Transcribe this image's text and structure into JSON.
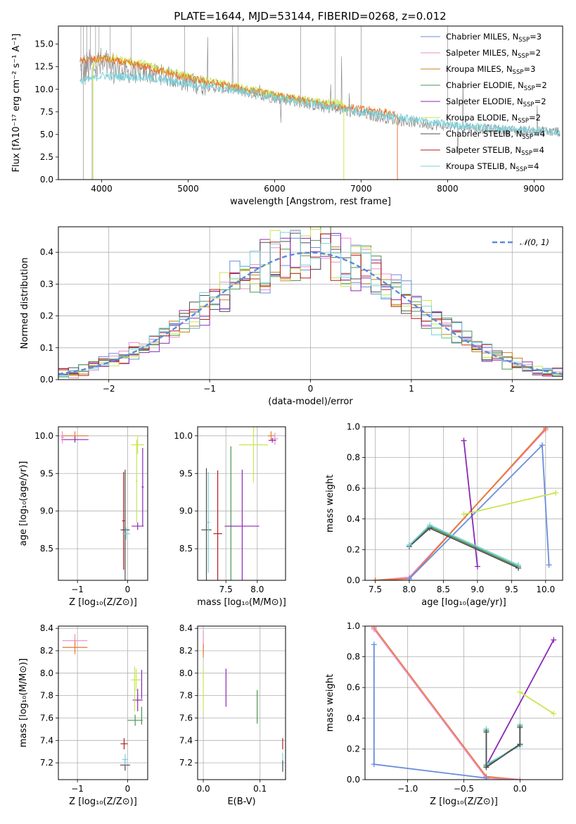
{
  "colors": {
    "Chabrier MILES": "#6a8cdc",
    "Salpeter MILES": "#ec8cc8",
    "Kroupa MILES": "#c8821e",
    "Chabrier ELODIE": "#4c9650",
    "Salpeter ELODIE": "#8c28b4",
    "Kroupa ELODIE": "#c8e650",
    "Chabrier STELIB": "#505050",
    "Salpeter STELIB": "#b41e1e",
    "Kroupa STELIB": "#78d2dc",
    "data": "#808080",
    "gauss": "#5a8cdc",
    "orange": "#e87830"
  },
  "chart_data": [
    {
      "id": "spectrum",
      "type": "line",
      "title": "PLATE=1644, MJD=53144, FIBERID=0268, z=0.012",
      "xlabel": "wavelength [Angstrom, rest frame]",
      "ylabel": "Flux [fλ10⁻¹⁷ erg cm⁻² s⁻¹ A⁻¹]",
      "xlim": [
        3500,
        9330
      ],
      "ylim": [
        0,
        17
      ],
      "xticks": [
        4000,
        5000,
        6000,
        7000,
        8000,
        9000
      ],
      "yticks": [
        0.0,
        2.5,
        5.0,
        7.5,
        10.0,
        12.5,
        15.0
      ],
      "grid": false,
      "legend_position": "top-right",
      "legend": [
        {
          "main": "Chabrier MILES, N",
          "sub": "SSP",
          "end": "=3",
          "color": "Chabrier MILES"
        },
        {
          "main": "Salpeter MILES, N",
          "sub": "SSP",
          "end": "=2",
          "color": "Salpeter MILES"
        },
        {
          "main": "Kroupa MILES, N",
          "sub": "SSP",
          "end": "=3",
          "color": "Kroupa MILES"
        },
        {
          "main": "Chabrier ELODIE, N",
          "sub": "SSP",
          "end": "=2",
          "color": "Chabrier ELODIE"
        },
        {
          "main": "Salpeter ELODIE, N",
          "sub": "SSP",
          "end": "=2",
          "color": "Salpeter ELODIE"
        },
        {
          "main": "Kroupa ELODIE, N",
          "sub": "SSP",
          "end": "=2",
          "color": "Kroupa ELODIE"
        },
        {
          "main": "Chabrier STELIB, N",
          "sub": "SSP",
          "end": "=4",
          "color": "Chabrier STELIB"
        },
        {
          "main": "Salpeter STELIB, N",
          "sub": "SSP",
          "end": "=4",
          "color": "Salpeter STELIB"
        },
        {
          "main": "Kroupa STELIB, N",
          "sub": "SSP",
          "end": "=4",
          "color": "Kroupa STELIB"
        }
      ],
      "continuum": {
        "x": [
          3750,
          3900,
          4000,
          4100,
          4300,
          4500,
          4700,
          5000,
          5300,
          5600,
          5900,
          6200,
          6500,
          6800,
          7100,
          7400,
          7700,
          8000,
          8300,
          8600,
          8900,
          9200
        ],
        "y": [
          12.0,
          12.5,
          12.6,
          12.3,
          11.8,
          11.8,
          11.6,
          10.8,
          10.2,
          9.8,
          9.2,
          8.7,
          8.1,
          7.6,
          7.1,
          6.6,
          6.2,
          5.9,
          5.7,
          5.5,
          5.4,
          5.3
        ]
      },
      "models": [
        {
          "name": "Kroupa ELODIE",
          "x": [
            3900,
            4000,
            4500,
            5000,
            5500,
            6000,
            6500,
            6800
          ],
          "y": [
            12.8,
            13.6,
            12.8,
            11.4,
            10.4,
            9.4,
            8.6,
            8.4
          ]
        },
        {
          "name": "Kroupa MILES",
          "x": [
            3750,
            4000,
            4500,
            5000,
            5500,
            6000,
            6500,
            7000,
            7400
          ],
          "y": [
            13.1,
            13.4,
            12.5,
            11.2,
            10.3,
            9.3,
            8.5,
            7.8,
            7.3
          ]
        },
        {
          "name": "Kroupa STELIB",
          "x": [
            3750,
            4000,
            4500,
            5000,
            5500,
            6000,
            6500,
            7000,
            7500,
            8000,
            8500,
            9000,
            9300
          ],
          "y": [
            10.8,
            11.5,
            11.3,
            10.6,
            10.0,
            9.1,
            8.3,
            7.5,
            6.8,
            6.1,
            5.7,
            5.5,
            5.3
          ]
        }
      ]
    },
    {
      "id": "residuals",
      "type": "line",
      "xlabel": "(data-model)/error",
      "ylabel": "Normed distribution",
      "xlim": [
        -2.5,
        2.5
      ],
      "ylim": [
        0,
        0.48
      ],
      "xticks": [
        -2,
        -1,
        0,
        1,
        2
      ],
      "yticks": [
        0.0,
        0.1,
        0.2,
        0.3,
        0.4
      ],
      "grid": true,
      "legend_position": "top-right",
      "gauss_label": "𝒩(0, 1)",
      "hist_bins": 50,
      "series_order": [
        "Chabrier MILES",
        "Salpeter MILES",
        "Kroupa MILES",
        "Chabrier ELODIE",
        "Salpeter ELODIE",
        "Kroupa ELODIE",
        "Chabrier STELIB",
        "Salpeter STELIB",
        "Kroupa STELIB"
      ]
    },
    {
      "id": "age-Z",
      "type": "scatter",
      "xlabel": "Z [log₁₀(Z/Z⊙)]",
      "ylabel": "age  [log₁₀(age/yr)]",
      "xlim": [
        -1.38,
        0.4
      ],
      "ylim": [
        8.08,
        10.12
      ],
      "xticks": [
        -1,
        0
      ],
      "yticks": [
        8.5,
        9.0,
        9.5,
        10.0
      ],
      "grid": true,
      "points": [
        {
          "name": "Kroupa MILES",
          "x": -1.05,
          "xerr": 0.27,
          "y": 10.0,
          "yerr": 0.06
        },
        {
          "name": "Salpeter ELODIE",
          "x": -1.05,
          "xerr": 0.27,
          "y": 9.95,
          "yerr": 0.04
        },
        {
          "name": "Salpeter MILES",
          "x": -1.3,
          "xerr": 0.03,
          "y": 9.98,
          "yerr": 0.08
        },
        {
          "name": "Chabrier STELIB",
          "x": -0.05,
          "xerr": 0.09,
          "y": 8.75,
          "yerr": 0.8
        },
        {
          "name": "Salpeter STELIB",
          "x": -0.08,
          "xerr": 0.03,
          "y": 8.87,
          "yerr": 0.65
        },
        {
          "name": "Kroupa STELIB",
          "x": -0.03,
          "xerr": 0.08,
          "y": 8.7,
          "yerr": 0.08
        },
        {
          "name": "Kroupa ELODIE",
          "x": 0.2,
          "xerr": 0.13,
          "y": 9.88,
          "yerr": 0.12
        },
        {
          "name": "Salpeter ELODIE",
          "x": 0.2,
          "xerr": 0.12,
          "y": 8.8,
          "yerr": 0.05
        },
        {
          "name": "Salpeter ELODIE",
          "x": 0.3,
          "xerr": 0.02,
          "y": 9.32,
          "yerr": 0.52
        },
        {
          "name": "Kroupa ELODIE",
          "x": 0.18,
          "xerr": 0.02,
          "y": 9.4,
          "yerr": 0.55
        }
      ]
    },
    {
      "id": "age-mass",
      "type": "scatter",
      "xlabel": "mass [log₁₀(M/M⊙)]",
      "ylabel": "",
      "xlim": [
        7.05,
        8.45
      ],
      "ylim": [
        8.08,
        10.12
      ],
      "xticks": [
        7.5,
        8.0
      ],
      "yticks": [
        8.5,
        9.0,
        9.5,
        10.0
      ],
      "grid": true,
      "points": [
        {
          "name": "Chabrier STELIB",
          "x": 7.19,
          "xerr": 0.08,
          "y": 8.75,
          "yerr": 0.82
        },
        {
          "name": "Kroupa STELIB",
          "x": 7.22,
          "xerr": 0.03,
          "y": 8.85,
          "yerr": 0.67
        },
        {
          "name": "Salpeter STELIB",
          "x": 7.37,
          "xerr": 0.07,
          "y": 8.7,
          "yerr": 0.84
        },
        {
          "name": "Chabrier ELODIE",
          "x": 7.58,
          "xerr": 0.1,
          "y": 8.8,
          "yerr": 1.06
        },
        {
          "name": "Salpeter ELODIE",
          "x": 7.76,
          "xerr": 0.27,
          "y": 8.8,
          "yerr": 0.75
        },
        {
          "name": "Kroupa ELODIE",
          "x": 7.94,
          "xerr": 0.23,
          "y": 9.88,
          "yerr": 0.5
        },
        {
          "name": "Kroupa MILES",
          "x": 8.22,
          "xerr": 0.05,
          "y": 10.0,
          "yerr": 0.06
        },
        {
          "name": "Salpeter MILES",
          "x": 8.28,
          "xerr": 0.05,
          "y": 9.96,
          "yerr": 0.08
        },
        {
          "name": "Salpeter ELODIE",
          "x": 8.24,
          "xerr": 0.06,
          "y": 9.94,
          "yerr": 0.03
        }
      ]
    },
    {
      "id": "weight-age",
      "type": "line",
      "xlabel": "age  [log₁₀(age/yr)]",
      "ylabel": "mass weight",
      "xlim": [
        7.35,
        10.25
      ],
      "ylim": [
        0,
        1
      ],
      "xticks": [
        7.5,
        8.0,
        8.5,
        9.0,
        9.5,
        10.0
      ],
      "yticks": [
        0.0,
        0.2,
        0.4,
        0.6,
        0.8,
        1.0
      ],
      "grid": true,
      "series": [
        {
          "name": "Salpeter MILES",
          "x": [
            7.5,
            8.0,
            10.0
          ],
          "y": [
            0.0,
            0.02,
            0.98
          ]
        },
        {
          "name": "Kroupa MILES",
          "x": [
            7.5,
            8.0,
            10.0
          ],
          "y": [
            0.0,
            0.01,
            0.99
          ]
        },
        {
          "name": "Chabrier MILES",
          "x": [
            8.0,
            9.95,
            10.05
          ],
          "y": [
            0.01,
            0.88,
            0.1
          ]
        },
        {
          "name": "Salpeter ELODIE",
          "x": [
            8.8,
            9.0
          ],
          "y": [
            0.91,
            0.09
          ]
        },
        {
          "name": "Kroupa ELODIE",
          "x": [
            8.8,
            10.15
          ],
          "y": [
            0.43,
            0.57
          ]
        },
        {
          "name": "Chabrier ELODIE",
          "x": [
            8.0,
            8.3,
            9.6
          ],
          "y": [
            0.23,
            0.35,
            0.09
          ]
        },
        {
          "name": "Chabrier STELIB",
          "x": [
            8.0,
            8.3,
            9.6
          ],
          "y": [
            0.22,
            0.34,
            0.08
          ]
        },
        {
          "name": "Kroupa STELIB",
          "x": [
            8.0,
            8.3,
            9.6
          ],
          "y": [
            0.23,
            0.36,
            0.1
          ]
        }
      ]
    },
    {
      "id": "mass-Z",
      "type": "scatter",
      "xlabel": "Z [log₁₀(Z/Z⊙)]",
      "ylabel": "mass [log₁₀(M/M⊙)]",
      "xlim": [
        -1.38,
        0.4
      ],
      "ylim": [
        7.05,
        8.42
      ],
      "xticks": [
        -1,
        0
      ],
      "yticks": [
        7.2,
        7.4,
        7.6,
        7.8,
        8.0,
        8.2,
        8.4
      ],
      "grid": true,
      "points": [
        {
          "name": "Salpeter MILES",
          "x": -1.05,
          "xerr": 0.25,
          "y": 8.29,
          "yerr": 0.06
        },
        {
          "name": "Kroupa MILES",
          "x": -1.05,
          "xerr": 0.25,
          "y": 8.23,
          "yerr": 0.06
        },
        {
          "name": "Chabrier STELIB",
          "x": -0.05,
          "xerr": 0.1,
          "y": 7.18,
          "yerr": 0.05
        },
        {
          "name": "Salpeter STELIB",
          "x": -0.07,
          "xerr": 0.07,
          "y": 7.37,
          "yerr": 0.05
        },
        {
          "name": "Kroupa STELIB",
          "x": -0.05,
          "xerr": 0.06,
          "y": 7.23,
          "yerr": 0.05
        },
        {
          "name": "Chabrier ELODIE",
          "x": 0.15,
          "xerr": 0.15,
          "y": 7.58,
          "yerr": 0.05
        },
        {
          "name": "Chabrier ELODIE",
          "x": 0.28,
          "xerr": 0.01,
          "y": 7.62,
          "yerr": 0.08
        },
        {
          "name": "Salpeter ELODIE",
          "x": 0.2,
          "xerr": 0.1,
          "y": 7.76,
          "yerr": 0.1
        },
        {
          "name": "Salpeter ELODIE",
          "x": 0.28,
          "xerr": 0.01,
          "y": 7.9,
          "yerr": 0.13
        },
        {
          "name": "Kroupa ELODIE",
          "x": 0.17,
          "xerr": 0.1,
          "y": 7.94,
          "yerr": 0.1
        },
        {
          "name": "Kroupa ELODIE",
          "x": 0.14,
          "xerr": 0.01,
          "y": 7.86,
          "yerr": 0.2
        }
      ]
    },
    {
      "id": "mass-EBV",
      "type": "scatter",
      "xlabel": "E(B-V)",
      "ylabel": "",
      "xlim": [
        -0.01,
        0.145
      ],
      "ylim": [
        7.05,
        8.42
      ],
      "xticks": [
        0.0,
        0.1
      ],
      "yticks": [
        7.2,
        7.4,
        7.6,
        7.8,
        8.0,
        8.2,
        8.4
      ],
      "grid": true,
      "points": [
        {
          "name": "Salpeter MILES",
          "x": 0.0,
          "xerr": 0.0,
          "y": 8.28,
          "yerr": 0.1
        },
        {
          "name": "Kroupa MILES",
          "x": 0.0,
          "xerr": 0.0,
          "y": 8.2,
          "yerr": 0.06
        },
        {
          "name": "Kroupa ELODIE",
          "x": 0.0,
          "xerr": 0.0,
          "y": 7.84,
          "yerr": 0.2
        },
        {
          "name": "Salpeter ELODIE",
          "x": 0.04,
          "xerr": 0.0,
          "y": 7.87,
          "yerr": 0.17
        },
        {
          "name": "Chabrier ELODIE",
          "x": 0.095,
          "xerr": 0.0,
          "y": 7.7,
          "yerr": 0.15
        },
        {
          "name": "Salpeter STELIB",
          "x": 0.14,
          "xerr": 0.0,
          "y": 7.37,
          "yerr": 0.05
        },
        {
          "name": "Kroupa STELIB",
          "x": 0.14,
          "xerr": 0.0,
          "y": 7.23,
          "yerr": 0.06
        },
        {
          "name": "Chabrier STELIB",
          "x": 0.14,
          "xerr": 0.0,
          "y": 7.17,
          "yerr": 0.05
        }
      ]
    },
    {
      "id": "weight-Z",
      "type": "line",
      "xlabel": "Z [log₁₀(Z/Z⊙)]",
      "ylabel": "mass weight",
      "xlim": [
        -1.38,
        0.38
      ],
      "ylim": [
        0,
        1
      ],
      "xticks": [
        -1.0,
        -0.5,
        0.0
      ],
      "yticks": [
        0.0,
        0.2,
        0.4,
        0.6,
        0.8,
        1.0
      ],
      "grid": true,
      "series": [
        {
          "name": "Kroupa MILES",
          "x": [
            -1.3,
            -0.3,
            0.0
          ],
          "y": [
            0.99,
            0.02,
            0.0
          ]
        },
        {
          "name": "Salpeter MILES",
          "x": [
            -1.3,
            -0.3,
            0.0
          ],
          "y": [
            0.98,
            0.01,
            0.0
          ]
        },
        {
          "name": "Chabrier MILES",
          "x": [
            -1.3,
            -1.3,
            -0.3
          ],
          "y": [
            0.88,
            0.1,
            0.01
          ]
        },
        {
          "name": "Salpeter ELODIE",
          "x": [
            -0.3,
            0.3
          ],
          "y": [
            0.09,
            0.91
          ]
        },
        {
          "name": "Kroupa ELODIE",
          "x": [
            0.0,
            0.3
          ],
          "y": [
            0.57,
            0.43
          ]
        },
        {
          "name": "Chabrier ELODIE",
          "x": [
            -0.3,
            -0.3,
            0.0,
            0.0
          ],
          "y": [
            0.32,
            0.09,
            0.23,
            0.35
          ]
        },
        {
          "name": "Kroupa STELIB",
          "x": [
            -0.3,
            -0.3,
            0.0,
            0.0
          ],
          "y": [
            0.33,
            0.1,
            0.22,
            0.36
          ]
        },
        {
          "name": "Chabrier STELIB",
          "x": [
            -0.3,
            -0.3,
            0.0,
            0.0
          ],
          "y": [
            0.31,
            0.08,
            0.23,
            0.34
          ]
        }
      ]
    }
  ]
}
